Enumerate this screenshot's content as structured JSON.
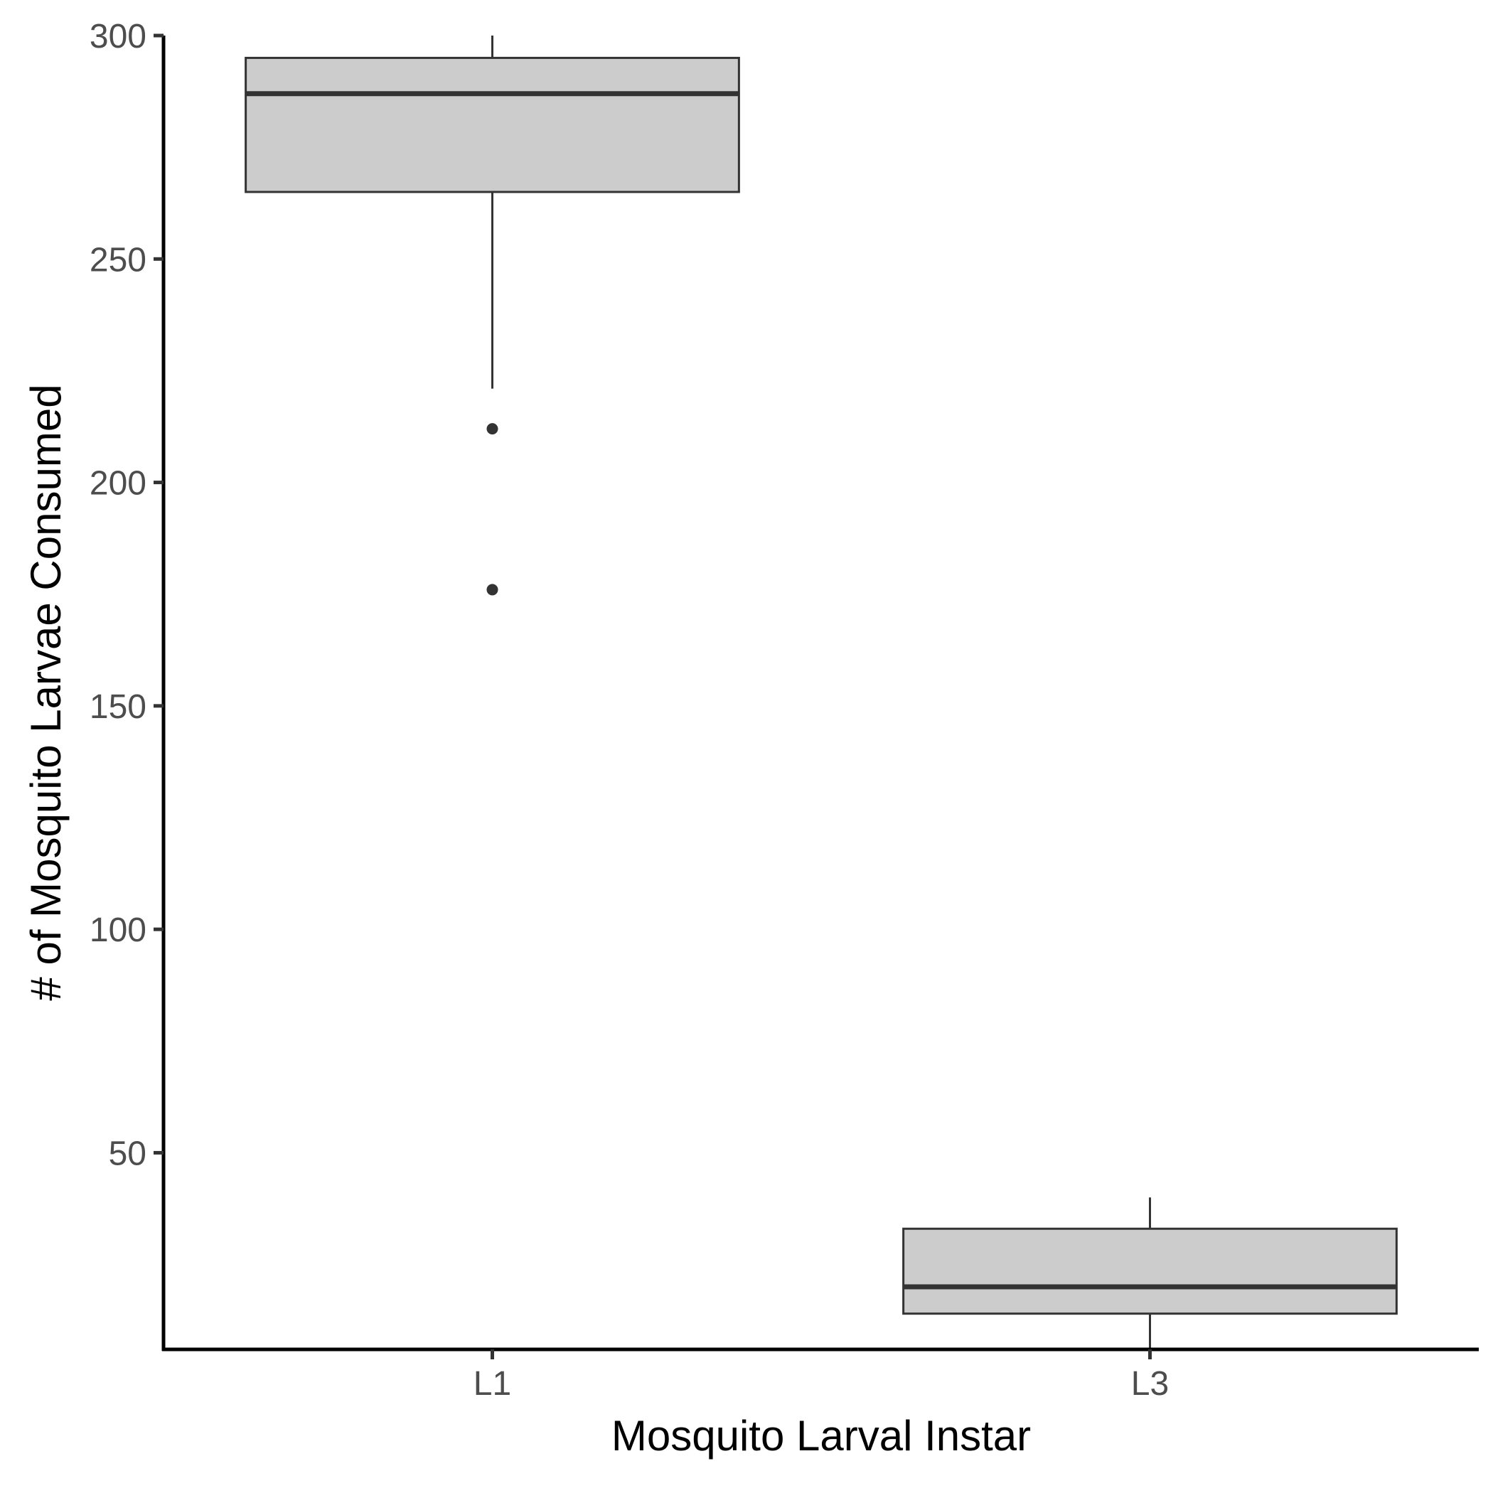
{
  "chart_data": {
    "type": "boxplot",
    "title": "",
    "xlabel": "Mosquito Larval Instar",
    "ylabel": "# of Mosquito Larvae Consumed",
    "ylim": [
      6,
      300
    ],
    "y_ticks": [
      50,
      100,
      150,
      200,
      250,
      300
    ],
    "categories": [
      "L1",
      "L3"
    ],
    "boxes": [
      {
        "category": "L1",
        "whisker_low": 221,
        "q1": 265,
        "median": 287,
        "q3": 295,
        "whisker_high": 300,
        "outliers": [
          212,
          176
        ]
      },
      {
        "category": "L3",
        "whisker_low": 6,
        "q1": 14,
        "median": 20,
        "q3": 33,
        "whisker_high": 40,
        "outliers": []
      }
    ],
    "grid": false,
    "colors": {
      "box_fill": "#cccccc",
      "box_stroke": "#333333",
      "axis": "#000000"
    }
  }
}
